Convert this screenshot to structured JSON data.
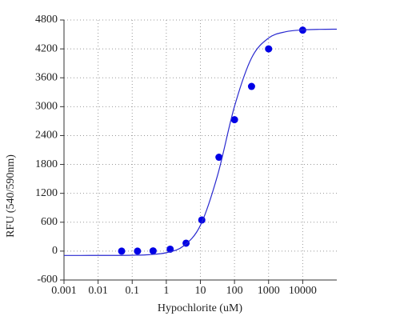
{
  "chart_data": {
    "type": "scatter",
    "x_label": "Hypochlorite (uM)",
    "y_label": "RFU (540/590nm)",
    "log_x": true,
    "grid": true,
    "xlim": [
      0.001,
      100000
    ],
    "xticks": [
      0.001,
      0.01,
      0.1,
      1,
      10,
      100,
      1000,
      10000
    ],
    "ylim": [
      -600,
      4800
    ],
    "yticks": [
      -600,
      0,
      600,
      1200,
      1800,
      2400,
      3000,
      3600,
      4200,
      4800
    ],
    "series": [
      {
        "type": "scatter",
        "color": "#0000e6",
        "x": [
          0.049,
          0.143,
          0.41,
          1.3,
          3.8,
          11,
          35,
          100,
          316,
          1000,
          10000
        ],
        "values": [
          0,
          0,
          5,
          40,
          165,
          647,
          1950,
          2730,
          3420,
          4200,
          4590
        ]
      },
      {
        "type": "line",
        "color": "#2a2ad0",
        "x": [
          0.001,
          0.00316,
          0.01,
          0.0316,
          0.1,
          0.316,
          1,
          3.16,
          10,
          31.6,
          100,
          316,
          1000,
          3162,
          10000,
          31623,
          100000
        ],
        "values": [
          -90,
          -90,
          -89,
          -89,
          -85,
          -74,
          -33,
          104,
          535,
          1565,
          3006,
          4011,
          4425,
          4556,
          4594,
          4606,
          4609
        ]
      }
    ]
  }
}
